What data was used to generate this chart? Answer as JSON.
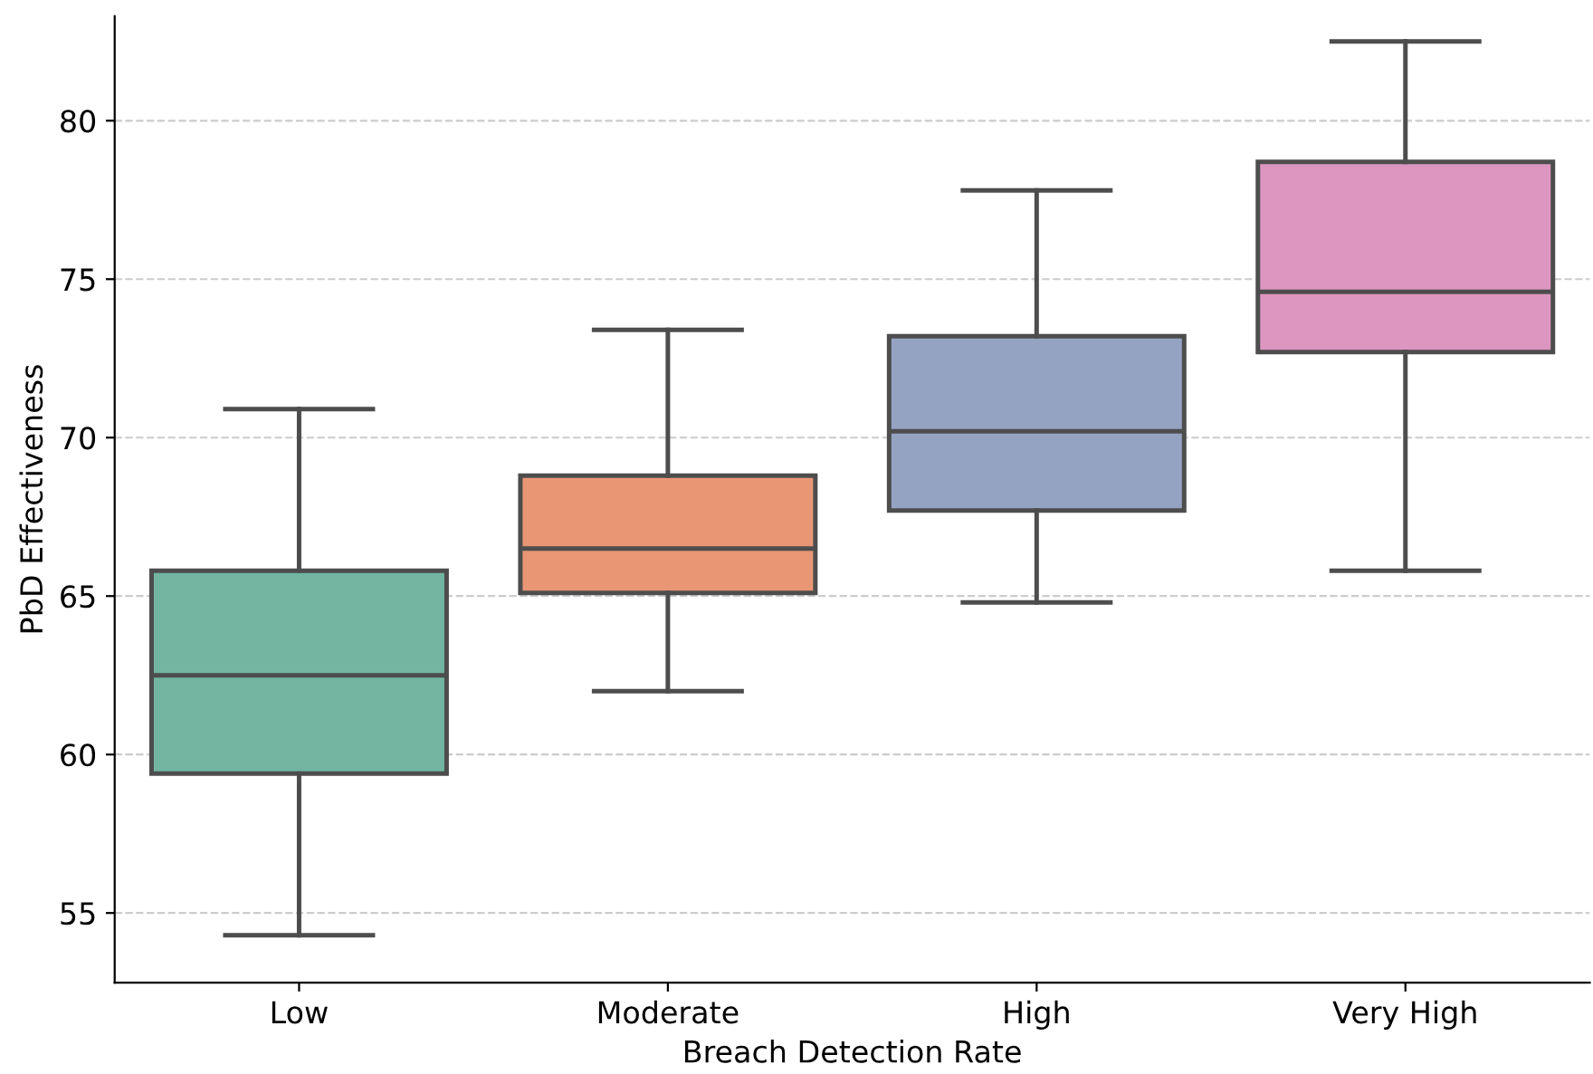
{
  "chart_data": {
    "type": "box",
    "xlabel": "Breach Detection Rate",
    "ylabel": "PbD Effectiveness",
    "categories": [
      "Low",
      "Moderate",
      "High",
      "Very High"
    ],
    "colors": [
      "#72b6a1",
      "#e99675",
      "#95a3c3",
      "#dc96c0"
    ],
    "boxes": [
      {
        "low": 54.3,
        "q1": 59.4,
        "median": 62.5,
        "q3": 65.8,
        "high": 70.9
      },
      {
        "low": 62.0,
        "q1": 65.1,
        "median": 66.5,
        "q3": 68.8,
        "high": 73.4
      },
      {
        "low": 64.8,
        "q1": 67.7,
        "median": 70.2,
        "q3": 73.2,
        "high": 77.8
      },
      {
        "low": 65.8,
        "q1": 72.7,
        "median": 74.6,
        "q3": 78.7,
        "high": 82.5
      }
    ],
    "ylim": [
      52.8,
      83.3
    ],
    "yticks": [
      55,
      60,
      65,
      70,
      75,
      80
    ],
    "grid": "y"
  }
}
